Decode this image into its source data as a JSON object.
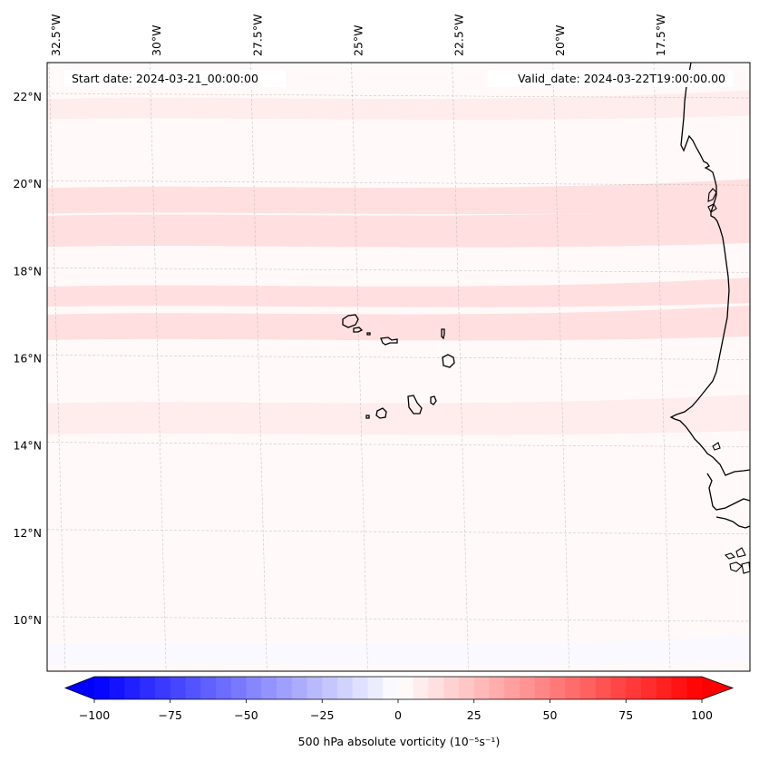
{
  "figure": {
    "start_date_label": "Start date: 2024-03-21_00:00:00",
    "valid_date_label": "Valid_date: 2024-03-22T19:00:00.00"
  },
  "map": {
    "lon_labels": [
      "32.5°W",
      "30°W",
      "27.5°W",
      "25°W",
      "22.5°W",
      "20°W",
      "17.5°W"
    ],
    "lon_values": [
      -32.5,
      -30,
      -27.5,
      -25,
      -22.5,
      -20,
      -17.5
    ],
    "lat_labels": [
      "22°N",
      "20°N",
      "18°N",
      "16°N",
      "14°N",
      "12°N",
      "10°N"
    ],
    "lat_values": [
      22,
      20,
      18,
      16,
      14,
      12,
      10
    ],
    "extent": {
      "lon_min": -33,
      "lon_max": -16,
      "lat_min": 8.8,
      "lat_max": 22.8
    },
    "gridlines": true,
    "features": [
      "coastline-west-africa",
      "cape-verde-islands"
    ],
    "field": "500 hPa absolute vorticity",
    "field_summary": "weak positive vorticity (~0 to 15) across domain, zonal bands of ~5-15 near 20°N, 18°N, 17°N; near-zero/slightly negative patches south of 10°N"
  },
  "colorbar": {
    "label": "500 hPa absolute vorticity (10⁻⁵s⁻¹)",
    "ticks": [
      "−100",
      "−75",
      "−50",
      "−25",
      "0",
      "25",
      "50",
      "75",
      "100"
    ],
    "tick_values": [
      -100,
      -75,
      -50,
      -25,
      0,
      25,
      50,
      75,
      100
    ],
    "min": -100,
    "max": 100,
    "step": 5,
    "extend": "both",
    "colormap": "bwr",
    "color_low": "#0000ff",
    "color_mid": "#ffffff",
    "color_high": "#ff0000"
  },
  "chart_data": {
    "type": "heatmap",
    "title": "",
    "xlabel": "",
    "ylabel": "",
    "x_ticks": [
      "32.5°W",
      "30°W",
      "27.5°W",
      "25°W",
      "22.5°W",
      "20°W",
      "17.5°W"
    ],
    "y_ticks": [
      "22°N",
      "20°N",
      "18°N",
      "16°N",
      "14°N",
      "12°N",
      "10°N"
    ],
    "colorbar_label": "500 hPa absolute vorticity (10^-5 s^-1)",
    "color_range": [
      -100,
      100
    ],
    "levels_step": 5,
    "bands": [
      {
        "lat": 21.7,
        "value": 7
      },
      {
        "lat": 19.6,
        "value": 12
      },
      {
        "lat": 18.9,
        "value": 10
      },
      {
        "lat": 17.4,
        "value": 12
      },
      {
        "lat": 16.7,
        "value": 10
      },
      {
        "lat": 14.6,
        "value": 6
      },
      {
        "lat": 9.2,
        "value": -2
      }
    ],
    "background_value": 3
  }
}
